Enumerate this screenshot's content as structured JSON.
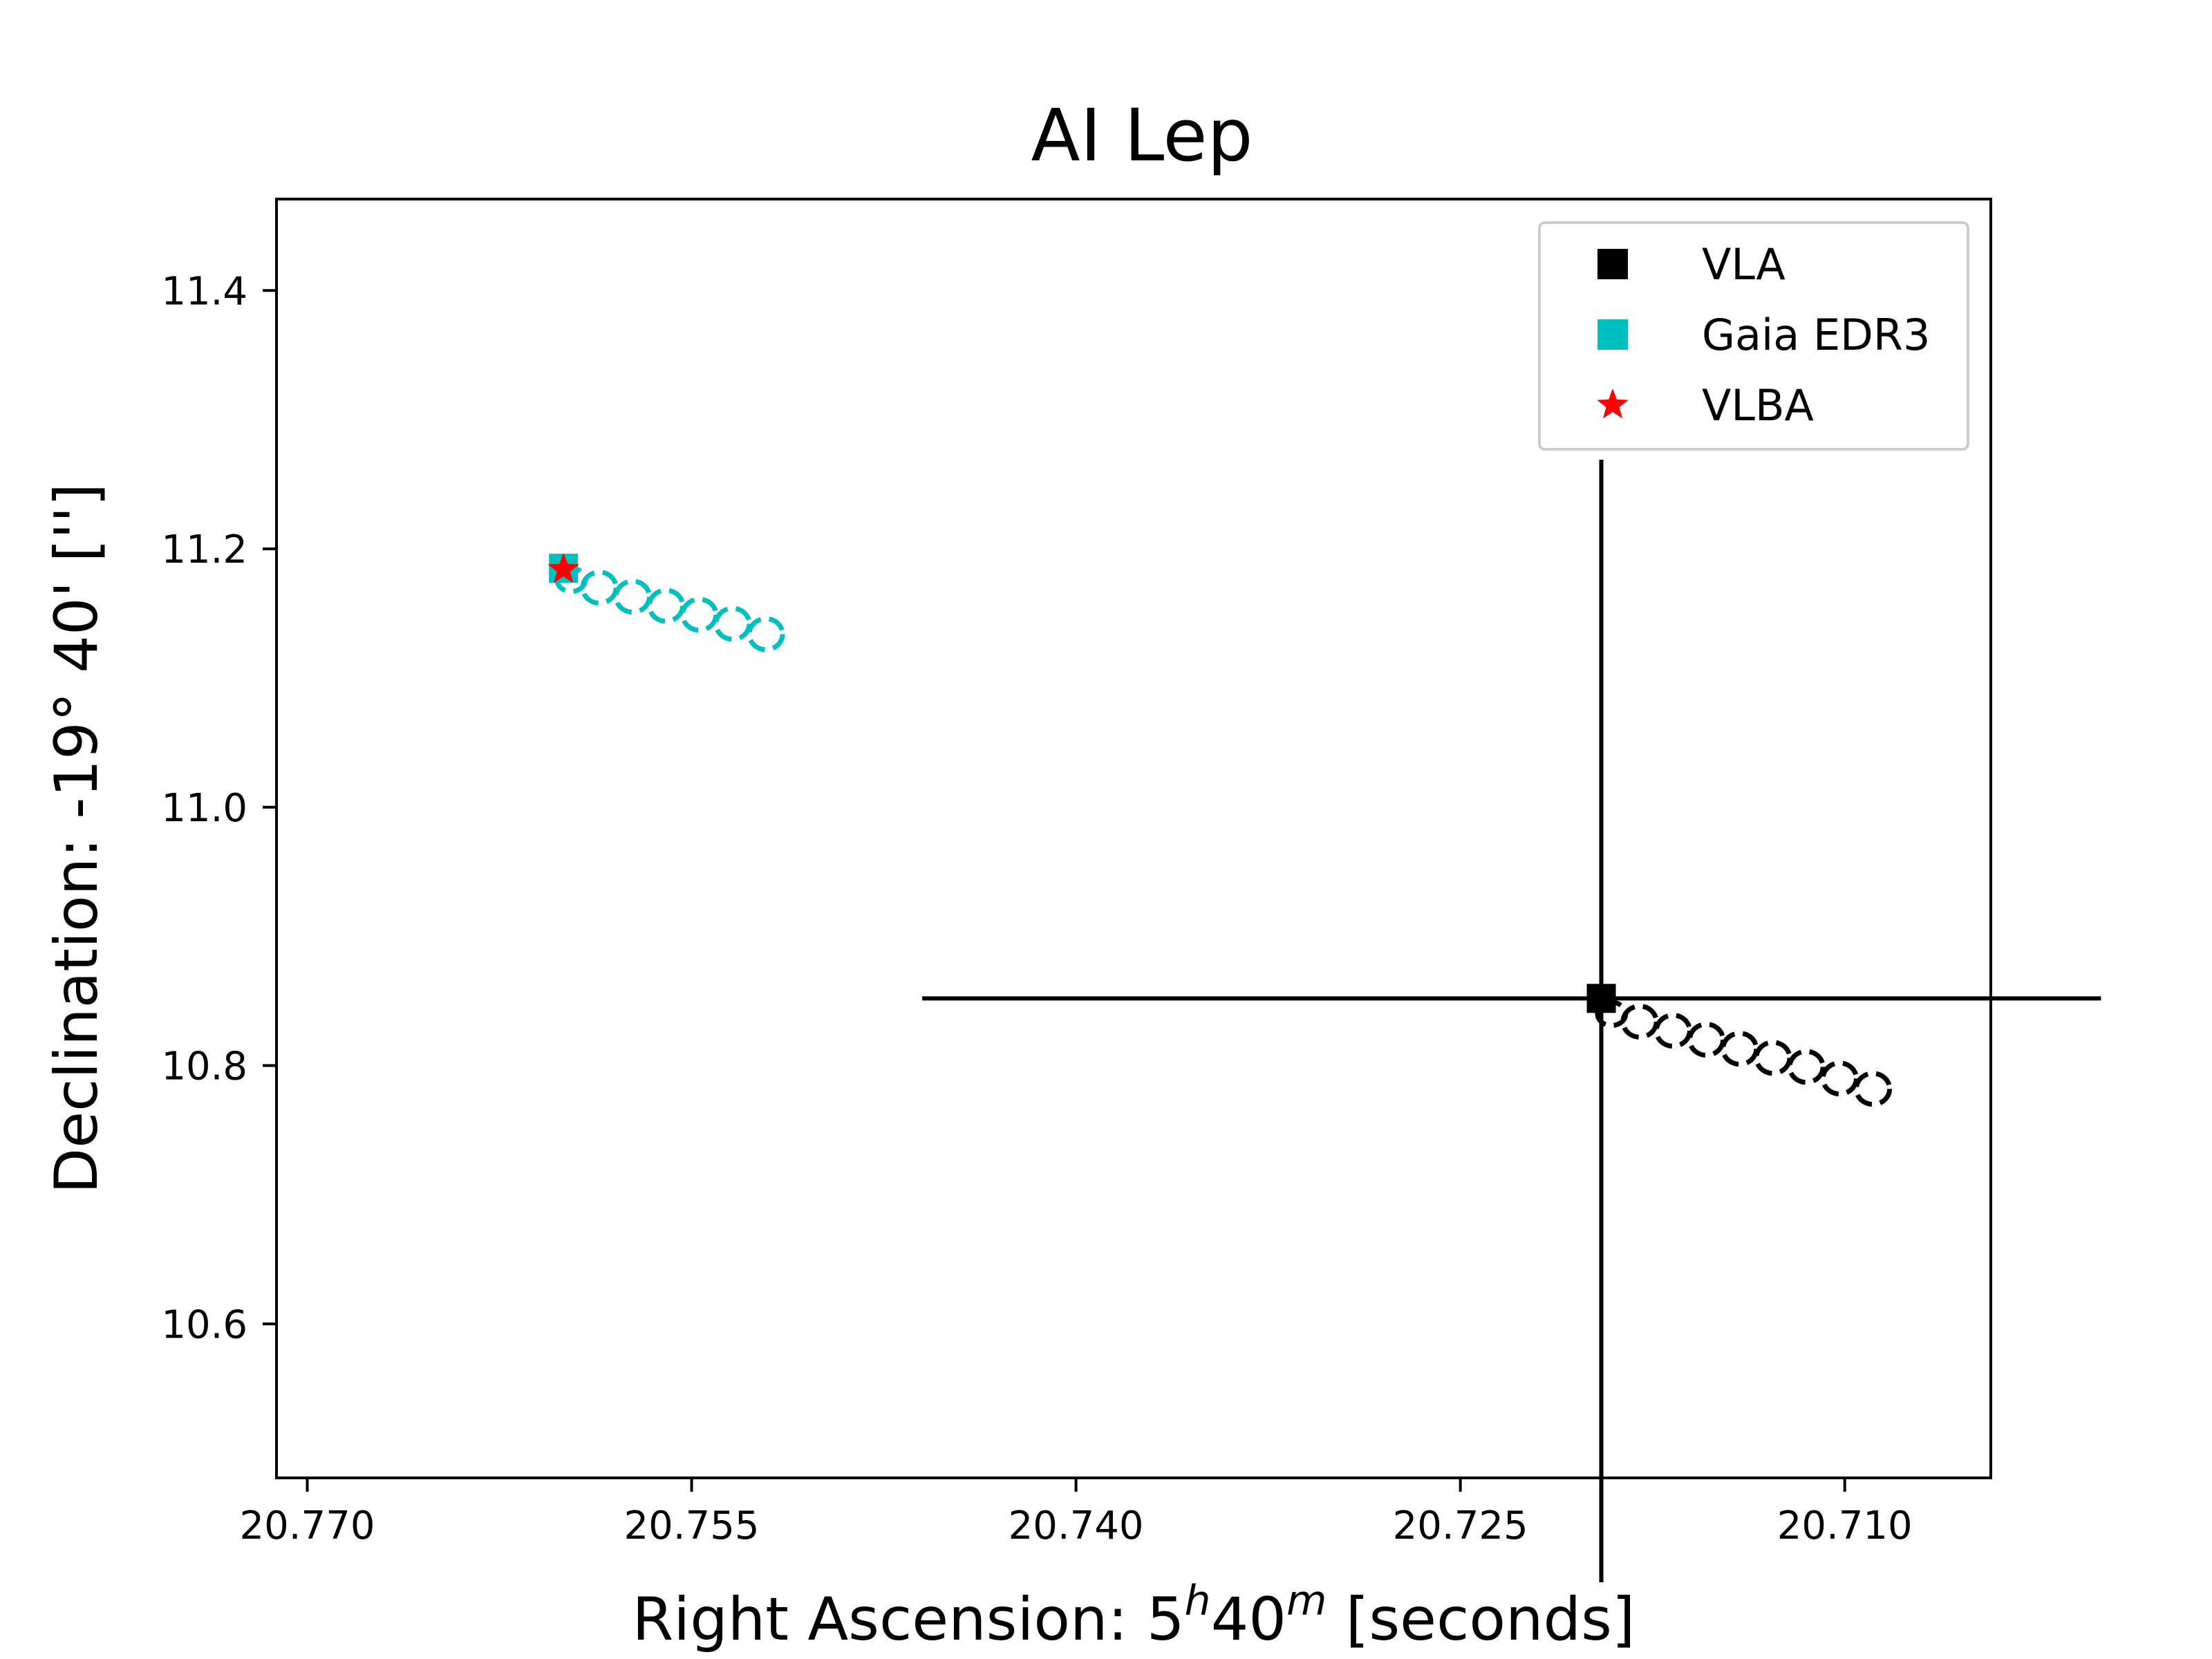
{
  "chart_data": {
    "type": "scatter",
    "title": "AI Lep",
    "xlabel": {
      "prefix": "Right Ascension: 5",
      "h": "h",
      "mid": "40",
      "m": "m",
      "suffix": " [seconds]"
    },
    "ylabel": "Declination: -19° 40' ['']",
    "x_inverted": true,
    "y_inverted": true,
    "xlim": [
      20.7712,
      20.7043
    ],
    "ylim": [
      11.4708,
      10.4808
    ],
    "xticks": [
      20.77,
      20.755,
      20.74,
      20.725,
      20.71
    ],
    "xtick_labels": [
      "20.770",
      "20.755",
      "20.740",
      "20.725",
      "20.710"
    ],
    "yticks": [
      10.6,
      10.8,
      11.0,
      11.2,
      11.4
    ],
    "ytick_labels": [
      "10.6",
      "10.8",
      "11.0",
      "11.2",
      "11.4"
    ],
    "grid": false,
    "legend_position": "top-right",
    "series": [
      {
        "name": "VLA",
        "color": "#000000",
        "marker": "square",
        "x": 20.7195,
        "y": 10.852,
        "x_err": [
          0.0265,
          0.0195
        ],
        "y_err": [
          0.452,
          0.417
        ],
        "track_color": "#000000",
        "track": [
          {
            "x": 20.7191,
            "y": 10.84,
            "rx": 0.00055,
            "ry": 0.009
          },
          {
            "x": 20.718,
            "y": 10.834,
            "rx": 0.00065,
            "ry": 0.012
          },
          {
            "x": 20.7167,
            "y": 10.827,
            "rx": 0.00065,
            "ry": 0.012
          },
          {
            "x": 20.7154,
            "y": 10.82,
            "rx": 0.00065,
            "ry": 0.012
          },
          {
            "x": 20.7141,
            "y": 10.813,
            "rx": 0.00065,
            "ry": 0.012
          },
          {
            "x": 20.7128,
            "y": 10.806,
            "rx": 0.00065,
            "ry": 0.012
          },
          {
            "x": 20.7115,
            "y": 10.799,
            "rx": 0.00065,
            "ry": 0.012
          },
          {
            "x": 20.7102,
            "y": 10.79,
            "rx": 0.00065,
            "ry": 0.012
          },
          {
            "x": 20.7089,
            "y": 10.782,
            "rx": 0.00065,
            "ry": 0.012
          }
        ]
      },
      {
        "name": "Gaia EDR3",
        "color": "#00bfbf",
        "marker": "square",
        "x": 20.76,
        "y": 11.185,
        "track_color": "#00bfbf",
        "track": [
          {
            "x": 20.7597,
            "y": 11.176,
            "rx": 0.00055,
            "ry": 0.009
          },
          {
            "x": 20.7586,
            "y": 11.17,
            "rx": 0.00065,
            "ry": 0.012
          },
          {
            "x": 20.7573,
            "y": 11.163,
            "rx": 0.00065,
            "ry": 0.012
          },
          {
            "x": 20.756,
            "y": 11.156,
            "rx": 0.00065,
            "ry": 0.012
          },
          {
            "x": 20.7547,
            "y": 11.149,
            "rx": 0.00065,
            "ry": 0.012
          },
          {
            "x": 20.7534,
            "y": 11.142,
            "rx": 0.00065,
            "ry": 0.012
          },
          {
            "x": 20.7521,
            "y": 11.134,
            "rx": 0.00065,
            "ry": 0.012
          }
        ]
      },
      {
        "name": "VLBA",
        "color": "#ff0000",
        "marker": "star",
        "x": 20.76,
        "y": 11.184
      }
    ]
  }
}
